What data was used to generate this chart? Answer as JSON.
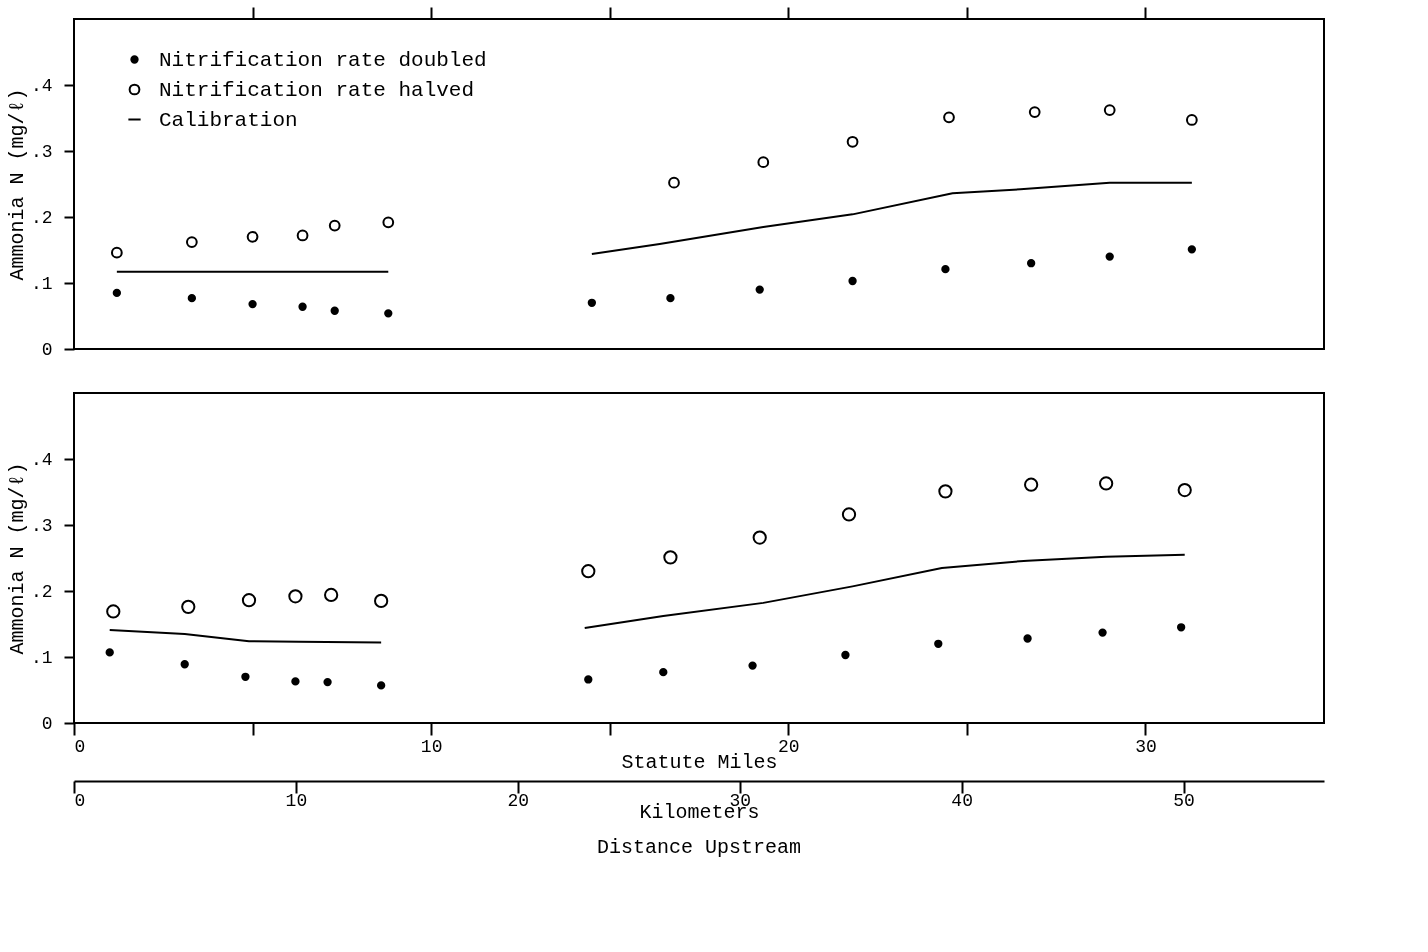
{
  "chart_data": [
    {
      "type": "scatter",
      "ylabel": "Ammonia N (mg/ℓ)",
      "xlim": [
        0,
        35
      ],
      "ylim": [
        0,
        0.5
      ],
      "xticks": [
        {
          "value": 5,
          "label": null
        },
        {
          "value": 10,
          "label": null
        },
        {
          "value": 15,
          "label": null
        },
        {
          "value": 20,
          "label": null
        },
        {
          "value": 25,
          "label": null
        },
        {
          "value": 30,
          "label": null
        }
      ],
      "yticks": [
        0,
        {
          "value": 0.1,
          "label": ".1"
        },
        {
          "value": 0.2,
          "label": ".2"
        },
        {
          "value": 0.3,
          "label": ".3"
        },
        {
          "value": 0.4,
          "label": ".4"
        }
      ],
      "tick_labels": "y",
      "grid": false,
      "legend": "top left",
      "series": [
        {
          "name": "Nitrification rate doubled",
          "marker": "circle",
          "color": "#000000",
          "x": [
            1.2,
            3.3,
            5.0,
            6.4,
            7.3,
            8.8,
            14.5,
            16.7,
            19.2,
            21.8,
            24.4,
            26.8,
            29.0,
            31.3
          ],
          "values": [
            0.085,
            0.077,
            0.068,
            0.064,
            0.058,
            0.054,
            0.07,
            0.077,
            0.09,
            0.103,
            0.121,
            0.13,
            0.14,
            0.151
          ]
        },
        {
          "name": "Nitrification rate halved",
          "marker": "circle",
          "color": "#000000",
          "x": [
            1.2,
            3.3,
            5.0,
            6.4,
            7.3,
            8.8,
            16.8,
            19.3,
            21.8,
            24.5,
            26.9,
            29.0,
            31.3
          ],
          "values": [
            0.146,
            0.162,
            0.17,
            0.172,
            0.187,
            0.192,
            0.252,
            0.283,
            0.314,
            0.351,
            0.359,
            0.362,
            0.347
          ]
        },
        {
          "name": "Calibration",
          "type": "line",
          "marker": "none",
          "line_style": "solid",
          "color": "#000000",
          "x": [
            1.2,
            8.8,
            11.5,
            14.5,
            16.4,
            19.3,
            21.8,
            24.6,
            26.5,
            29.0,
            31.3
          ],
          "values": [
            0.117,
            0.117,
            null,
            0.144,
            0.159,
            0.185,
            0.204,
            0.236,
            0.242,
            0.252,
            0.252
          ]
        }
      ]
    },
    {
      "type": "scatter",
      "ylabel": "Ammonia N (mg/ℓ)",
      "xlabel": "Statute Miles",
      "x2label": "Kilometers",
      "xlim": [
        0,
        35
      ],
      "ylim": [
        0,
        0.5
      ],
      "xticks": [
        0,
        {
          "value": 5,
          "label": null
        },
        10,
        {
          "value": 15,
          "label": null
        },
        20,
        {
          "value": 25,
          "label": null
        },
        30
      ],
      "x2lim": [
        0,
        56.33
      ],
      "x2ticks": [
        0,
        10,
        20,
        30,
        40,
        50
      ],
      "yticks": [
        0,
        {
          "value": 0.1,
          "label": ".1"
        },
        {
          "value": 0.2,
          "label": ".2"
        },
        {
          "value": 0.3,
          "label": ".3"
        },
        {
          "value": 0.4,
          "label": ".4"
        }
      ],
      "grid": false,
      "annotations": [
        "Distance Upstream"
      ],
      "series": [
        {
          "marker": "circle",
          "color": "#000000",
          "x": [
            1.0,
            3.1,
            4.8,
            6.2,
            7.1,
            8.6,
            14.4,
            16.5,
            19.0,
            21.6,
            24.2,
            26.7,
            28.8,
            31.0
          ],
          "values": [
            0.107,
            0.089,
            0.07,
            0.063,
            0.062,
            0.057,
            0.066,
            0.077,
            0.087,
            0.103,
            0.12,
            0.128,
            0.137,
            0.145
          ]
        },
        {
          "marker": "circle",
          "color": "#000000",
          "x": [
            1.1,
            3.2,
            4.9,
            6.2,
            7.2,
            8.6,
            14.4,
            16.7,
            19.2,
            21.7,
            24.4,
            26.8,
            28.9,
            31.1
          ],
          "values": [
            0.169,
            0.176,
            0.186,
            0.192,
            0.194,
            0.185,
            0.23,
            0.251,
            0.281,
            0.316,
            0.351,
            0.361,
            0.363,
            0.353
          ]
        },
        {
          "type": "line",
          "marker": "none",
          "line_style": "solid",
          "color": "#000000",
          "x": [
            1.0,
            3.1,
            4.9,
            6.3,
            8.6,
            11.5,
            14.3,
            16.5,
            19.3,
            21.8,
            24.3,
            26.7,
            28.9,
            31.1
          ],
          "values": [
            0.141,
            0.135,
            0.124,
            0.123,
            0.122,
            null,
            0.144,
            0.162,
            0.182,
            0.207,
            0.235,
            0.246,
            0.252,
            0.255
          ]
        }
      ]
    }
  ]
}
